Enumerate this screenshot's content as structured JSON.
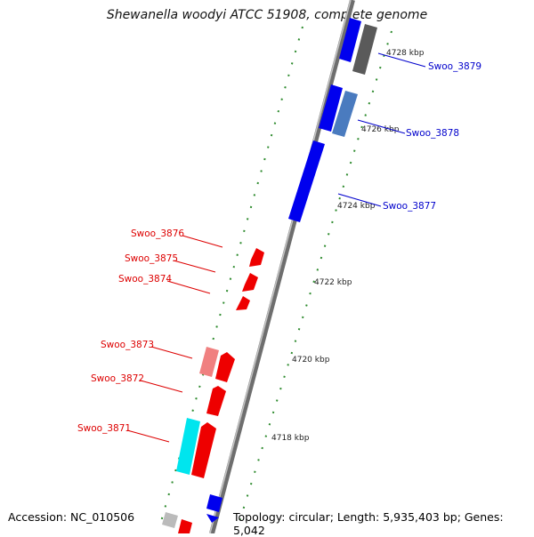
{
  "title": "Shewanella woodyi ATCC 51908, complete genome",
  "footer": {
    "accession": "Accession: NC_010506",
    "summary": "Topology: circular; Length: 5,935,403 bp; Genes: 5,042"
  },
  "colors": {
    "backbone": "#8a8a8a",
    "forward_gene": "#0000ff",
    "reverse_gene": "#ff0000",
    "tick": "#2e8b2e",
    "label_forward": "#0000cc",
    "label_reverse": "#dd0000"
  },
  "ticks": [
    {
      "label": "4728 kbp",
      "kbp": 4728
    },
    {
      "label": "4726 kbp",
      "kbp": 4726
    },
    {
      "label": "4724 kbp",
      "kbp": 4724
    },
    {
      "label": "4722 kbp",
      "kbp": 4722
    },
    {
      "label": "4720 kbp",
      "kbp": 4720
    },
    {
      "label": "4718 kbp",
      "kbp": 4718
    }
  ],
  "gene_labels": [
    {
      "name": "Swoo_3879",
      "strand": "forward"
    },
    {
      "name": "Swoo_3878",
      "strand": "forward"
    },
    {
      "name": "Swoo_3877",
      "strand": "forward"
    },
    {
      "name": "Swoo_3876",
      "strand": "reverse"
    },
    {
      "name": "Swoo_3875",
      "strand": "reverse"
    },
    {
      "name": "Swoo_3874",
      "strand": "reverse"
    },
    {
      "name": "Swoo_3873",
      "strand": "reverse"
    },
    {
      "name": "Swoo_3872",
      "strand": "reverse"
    },
    {
      "name": "Swoo_3871",
      "strand": "reverse"
    }
  ]
}
